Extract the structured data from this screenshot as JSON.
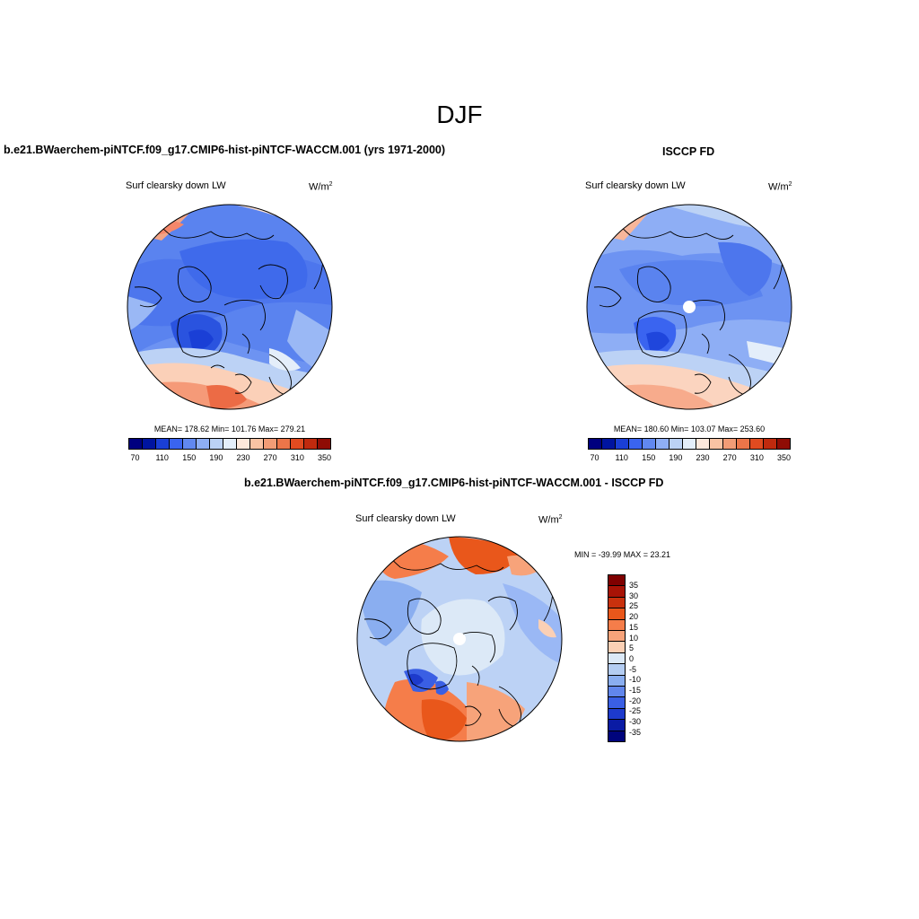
{
  "season": "DJF",
  "panel_left": {
    "case_title": "b.e21.BWaerchem-piNTCF.f09_g17.CMIP6-hist-piNTCF-WACCM.001 (yrs 1971-2000)",
    "variable": "Surf clearsky down LW",
    "units_base": "W/m",
    "units_exp": "2",
    "stats": "MEAN= 178.62  Min= 101.76  Max= 279.21"
  },
  "panel_right": {
    "case_title": "ISCCP FD",
    "variable": "Surf clearsky down LW",
    "units_base": "W/m",
    "units_exp": "2",
    "stats": "MEAN= 180.60  Min= 103.07  Max= 253.60"
  },
  "panel_diff": {
    "case_title": "b.e21.BWaerchem-piNTCF.f09_g17.CMIP6-hist-piNTCF-WACCM.001 - ISCCP FD",
    "variable": "Surf clearsky down LW",
    "units_base": "W/m",
    "units_exp": "2",
    "stats": "MIN = -39.99 MAX =  23.21"
  },
  "colorbar_abs": {
    "colors": [
      "#00007f",
      "#0014a0",
      "#1a3fd6",
      "#3a64f0",
      "#6188f0",
      "#8eaef5",
      "#bcd2f5",
      "#e4eefa",
      "#fde8dc",
      "#f9c3a4",
      "#f29c76",
      "#ec7549",
      "#e04b20",
      "#c02a0e",
      "#8f0c04"
    ],
    "tick_labels": [
      "70",
      "110",
      "150",
      "190",
      "230",
      "270",
      "310",
      "350"
    ]
  },
  "colorbar_diff": {
    "colors": [
      "#7f0000",
      "#a81306",
      "#c9310d",
      "#e9571b",
      "#f57d4a",
      "#f7a37a",
      "#fbd0b5",
      "#dce9f7",
      "#b4cdf2",
      "#8aaef0",
      "#6186ec",
      "#3a5fe4",
      "#1d3acc",
      "#0a1ba4",
      "#00047c"
    ],
    "tick_labels": [
      "35",
      "30",
      "25",
      "20",
      "15",
      "10",
      "5",
      "0",
      "-5",
      "-10",
      "-15",
      "-20",
      "-25",
      "-30",
      "-35"
    ]
  },
  "chart_data": [
    {
      "type": "heatmap",
      "title": "Surf clearsky down LW",
      "projection": "north polar stereographic",
      "source": "b.e21.BWaerchem-piNTCF.f09_g17.CMIP6-hist-piNTCF-WACCM.001 (yrs 1971-2000)",
      "units": "W/m2",
      "mean": 178.62,
      "min": 101.76,
      "max": 279.21,
      "contour_levels": [
        70,
        90,
        110,
        130,
        150,
        170,
        190,
        210,
        230,
        250,
        270,
        290,
        310,
        330,
        350
      ]
    },
    {
      "type": "heatmap",
      "title": "Surf clearsky down LW",
      "projection": "north polar stereographic",
      "source": "ISCCP FD",
      "units": "W/m2",
      "mean": 180.6,
      "min": 103.07,
      "max": 253.6,
      "contour_levels": [
        70,
        90,
        110,
        130,
        150,
        170,
        190,
        210,
        230,
        250,
        270,
        290,
        310,
        330,
        350
      ]
    },
    {
      "type": "heatmap",
      "title": "Surf clearsky down LW",
      "projection": "north polar stereographic",
      "source": "b.e21.BWaerchem-piNTCF.f09_g17.CMIP6-hist-piNTCF-WACCM.001 - ISCCP FD",
      "units": "W/m2",
      "min": -39.99,
      "max": 23.21,
      "contour_levels": [
        -35,
        -30,
        -25,
        -20,
        -15,
        -10,
        -5,
        0,
        5,
        10,
        15,
        20,
        25,
        30,
        35
      ]
    }
  ]
}
